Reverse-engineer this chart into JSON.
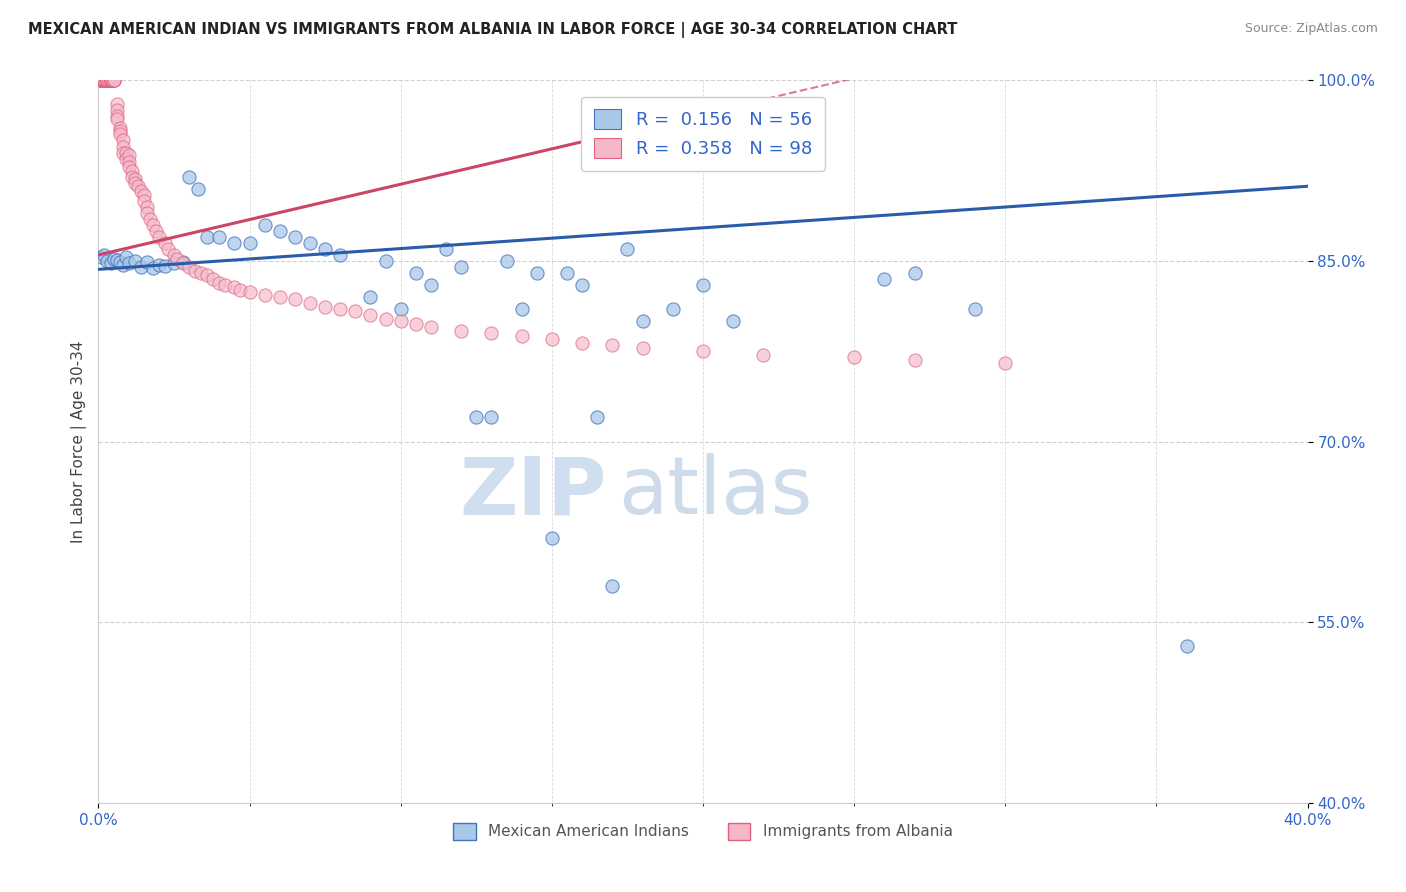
{
  "title": "MEXICAN AMERICAN INDIAN VS IMMIGRANTS FROM ALBANIA IN LABOR FORCE | AGE 30-34 CORRELATION CHART",
  "source": "Source: ZipAtlas.com",
  "ylabel": "In Labor Force | Age 30-34",
  "xlim": [
    0.0,
    0.4
  ],
  "ylim": [
    0.4,
    1.0
  ],
  "yticks": [
    0.4,
    0.55,
    0.7,
    0.85,
    1.0
  ],
  "yticklabels": [
    "40.0%",
    "55.0%",
    "70.0%",
    "85.0%",
    "100.0%"
  ],
  "blue_R": 0.156,
  "blue_N": 56,
  "pink_R": 0.358,
  "pink_N": 98,
  "blue_color": "#a8c8e8",
  "pink_color": "#f4b8c8",
  "blue_edge_color": "#4472c4",
  "pink_edge_color": "#e06080",
  "blue_line_color": "#2a5caa",
  "pink_line_color": "#cc4466",
  "blue_label": "Mexican American Indians",
  "pink_label": "Immigrants from Albania",
  "watermark_zip": "ZIP",
  "watermark_atlas": "atlas",
  "watermark_color": "#d0dff0",
  "blue_scatter_x": [
    0.001,
    0.002,
    0.003,
    0.004,
    0.005,
    0.006,
    0.007,
    0.008,
    0.009,
    0.01,
    0.012,
    0.014,
    0.016,
    0.018,
    0.02,
    0.022,
    0.025,
    0.028,
    0.03,
    0.033,
    0.036,
    0.04,
    0.045,
    0.05,
    0.055,
    0.06,
    0.065,
    0.07,
    0.075,
    0.08,
    0.09,
    0.095,
    0.1,
    0.105,
    0.11,
    0.115,
    0.12,
    0.125,
    0.13,
    0.135,
    0.14,
    0.145,
    0.15,
    0.155,
    0.16,
    0.165,
    0.17,
    0.175,
    0.18,
    0.19,
    0.2,
    0.21,
    0.26,
    0.27,
    0.29,
    0.36
  ],
  "blue_scatter_y": [
    0.853,
    0.855,
    0.85,
    0.848,
    0.852,
    0.851,
    0.849,
    0.847,
    0.853,
    0.848,
    0.85,
    0.845,
    0.849,
    0.844,
    0.847,
    0.846,
    0.848,
    0.849,
    0.92,
    0.91,
    0.87,
    0.87,
    0.865,
    0.865,
    0.88,
    0.875,
    0.87,
    0.865,
    0.86,
    0.855,
    0.82,
    0.85,
    0.81,
    0.84,
    0.83,
    0.86,
    0.845,
    0.72,
    0.72,
    0.85,
    0.81,
    0.84,
    0.62,
    0.84,
    0.83,
    0.72,
    0.58,
    0.86,
    0.8,
    0.81,
    0.83,
    0.8,
    0.835,
    0.84,
    0.81,
    0.53
  ],
  "pink_scatter_x": [
    0.0005,
    0.0007,
    0.0008,
    0.001,
    0.001,
    0.001,
    0.0015,
    0.0015,
    0.002,
    0.002,
    0.002,
    0.002,
    0.0025,
    0.0025,
    0.003,
    0.003,
    0.003,
    0.003,
    0.0035,
    0.0035,
    0.004,
    0.004,
    0.004,
    0.004,
    0.0045,
    0.0045,
    0.005,
    0.005,
    0.005,
    0.005,
    0.006,
    0.006,
    0.006,
    0.006,
    0.007,
    0.007,
    0.007,
    0.008,
    0.008,
    0.008,
    0.009,
    0.009,
    0.01,
    0.01,
    0.01,
    0.011,
    0.011,
    0.012,
    0.012,
    0.013,
    0.014,
    0.015,
    0.015,
    0.016,
    0.016,
    0.017,
    0.018,
    0.019,
    0.02,
    0.022,
    0.023,
    0.025,
    0.026,
    0.028,
    0.03,
    0.032,
    0.034,
    0.036,
    0.038,
    0.04,
    0.042,
    0.045,
    0.047,
    0.05,
    0.055,
    0.06,
    0.065,
    0.07,
    0.075,
    0.08,
    0.085,
    0.09,
    0.095,
    0.1,
    0.105,
    0.11,
    0.12,
    0.13,
    0.14,
    0.15,
    0.16,
    0.17,
    0.18,
    0.2,
    0.22,
    0.25,
    0.27,
    0.3
  ],
  "pink_scatter_y": [
    1.0,
    1.0,
    1.0,
    1.0,
    1.0,
    1.0,
    1.0,
    1.0,
    1.0,
    1.0,
    1.0,
    1.0,
    1.0,
    1.0,
    1.0,
    1.0,
    1.0,
    1.0,
    1.0,
    1.0,
    1.0,
    1.0,
    1.0,
    1.0,
    1.0,
    1.0,
    1.0,
    1.0,
    1.0,
    1.0,
    0.98,
    0.975,
    0.97,
    0.968,
    0.96,
    0.958,
    0.955,
    0.95,
    0.945,
    0.94,
    0.94,
    0.935,
    0.938,
    0.932,
    0.928,
    0.925,
    0.92,
    0.918,
    0.915,
    0.912,
    0.908,
    0.905,
    0.9,
    0.895,
    0.89,
    0.885,
    0.88,
    0.875,
    0.87,
    0.865,
    0.86,
    0.855,
    0.852,
    0.848,
    0.845,
    0.842,
    0.84,
    0.838,
    0.835,
    0.832,
    0.83,
    0.828,
    0.826,
    0.824,
    0.822,
    0.82,
    0.818,
    0.815,
    0.812,
    0.81,
    0.808,
    0.805,
    0.802,
    0.8,
    0.798,
    0.795,
    0.792,
    0.79,
    0.788,
    0.785,
    0.782,
    0.78,
    0.778,
    0.775,
    0.772,
    0.77,
    0.768,
    0.765
  ]
}
